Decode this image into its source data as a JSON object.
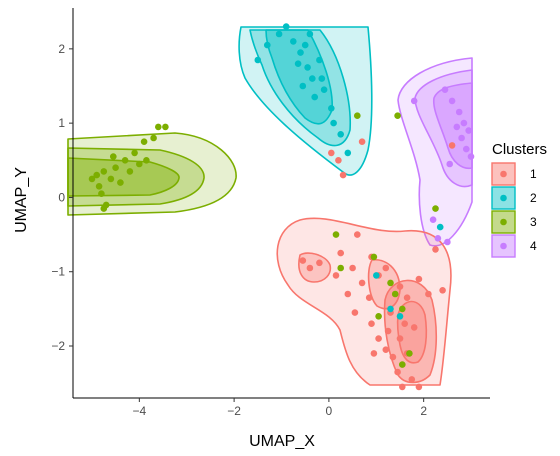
{
  "chart_data": {
    "type": "scatter",
    "title": "",
    "xlabel": "UMAP_X",
    "ylabel": "UMAP_Y",
    "xlim": [
      -5.4,
      3.4
    ],
    "ylim": [
      -2.7,
      2.55
    ],
    "xticks": [
      -4,
      -2,
      0,
      2
    ],
    "yticks": [
      -2,
      -1,
      0,
      1,
      2
    ],
    "tick_labels_x": [
      "−4",
      "−2",
      "0",
      "2"
    ],
    "tick_labels_y": [
      "−2",
      "−1",
      "0",
      "1",
      "2"
    ],
    "grid": false,
    "legend": {
      "title": "Clusters",
      "placement": "right"
    },
    "overlay": "2D density contours per cluster (3 levels, translucent fill)",
    "series": [
      {
        "name": "1",
        "color": "#F8766D",
        "points": [
          [
            -0.55,
            -0.85
          ],
          [
            -0.4,
            -0.95
          ],
          [
            -0.2,
            -0.88
          ],
          [
            0.25,
            -0.75
          ],
          [
            0.5,
            -0.95
          ],
          [
            0.7,
            -1.15
          ],
          [
            0.4,
            -1.3
          ],
          [
            0.15,
            -1.05
          ],
          [
            0.85,
            -1.35
          ],
          [
            0.55,
            -1.55
          ],
          [
            0.9,
            -1.7
          ],
          [
            1.05,
            -1.9
          ],
          [
            1.2,
            -2.05
          ],
          [
            1.5,
            -1.9
          ],
          [
            1.65,
            -2.1
          ],
          [
            1.45,
            -2.35
          ],
          [
            1.75,
            -2.45
          ],
          [
            1.35,
            -2.15
          ],
          [
            1.9,
            -2.55
          ],
          [
            1.55,
            -2.55
          ],
          [
            1.8,
            -1.75
          ],
          [
            1.3,
            -1.55
          ],
          [
            1.05,
            -1.05
          ],
          [
            1.2,
            -0.95
          ],
          [
            1.5,
            -1.2
          ],
          [
            1.9,
            -1.1
          ],
          [
            2.1,
            -1.3
          ],
          [
            2.4,
            -1.25
          ],
          [
            2.25,
            -0.7
          ],
          [
            0.6,
            -0.5
          ],
          [
            0.9,
            -0.8
          ],
          [
            2.6,
            0.7
          ],
          [
            0.05,
            0.6
          ],
          [
            0.2,
            0.5
          ],
          [
            0.3,
            0.3
          ],
          [
            0.7,
            0.75
          ],
          [
            1.65,
            -1.35
          ],
          [
            1.6,
            -1.7
          ],
          [
            1.25,
            -1.8
          ],
          [
            0.95,
            -2.1
          ]
        ]
      },
      {
        "name": "2",
        "color": "#00BFC4",
        "points": [
          [
            -1.3,
            2.05
          ],
          [
            -1.05,
            2.2
          ],
          [
            -0.9,
            2.3
          ],
          [
            -0.75,
            2.1
          ],
          [
            -0.6,
            1.95
          ],
          [
            -0.45,
            1.75
          ],
          [
            -0.5,
            2.05
          ],
          [
            -0.35,
            1.6
          ],
          [
            -0.2,
            1.85
          ],
          [
            -0.55,
            1.5
          ],
          [
            -0.3,
            1.35
          ],
          [
            -0.1,
            1.45
          ],
          [
            0.05,
            1.2
          ],
          [
            0.1,
            1.0
          ],
          [
            0.4,
            0.6
          ],
          [
            0.25,
            0.85
          ],
          [
            -0.15,
            1.6
          ],
          [
            -0.4,
            2.2
          ],
          [
            -1.5,
            1.85
          ],
          [
            -0.65,
            1.8
          ],
          [
            1.0,
            -1.05
          ],
          [
            1.3,
            -1.5
          ],
          [
            1.5,
            -1.6
          ],
          [
            2.35,
            -0.4
          ]
        ]
      },
      {
        "name": "3",
        "color": "#7CAE00",
        "points": [
          [
            -5.0,
            0.25
          ],
          [
            -4.9,
            0.3
          ],
          [
            -4.85,
            0.15
          ],
          [
            -4.75,
            0.35
          ],
          [
            -4.8,
            0.05
          ],
          [
            -4.7,
            -0.1
          ],
          [
            -4.6,
            0.25
          ],
          [
            -4.5,
            0.4
          ],
          [
            -4.4,
            0.2
          ],
          [
            -4.3,
            0.5
          ],
          [
            -4.2,
            0.35
          ],
          [
            -4.1,
            0.6
          ],
          [
            -4.0,
            0.45
          ],
          [
            -3.9,
            0.75
          ],
          [
            -3.85,
            0.5
          ],
          [
            -3.7,
            0.8
          ],
          [
            -3.6,
            0.95
          ],
          [
            -3.45,
            0.95
          ],
          [
            -4.75,
            -0.15
          ],
          [
            -4.55,
            0.55
          ],
          [
            0.15,
            -0.5
          ],
          [
            0.25,
            -0.95
          ],
          [
            0.95,
            -0.8
          ],
          [
            1.3,
            -1.15
          ],
          [
            1.4,
            -1.3
          ],
          [
            1.55,
            -1.5
          ],
          [
            1.55,
            -2.25
          ],
          [
            1.7,
            -2.1
          ],
          [
            2.25,
            -0.15
          ],
          [
            1.45,
            1.1
          ],
          [
            0.6,
            1.1
          ],
          [
            1.05,
            -1.6
          ]
        ]
      },
      {
        "name": "4",
        "color": "#C77CFF",
        "points": [
          [
            2.45,
            1.45
          ],
          [
            2.6,
            1.3
          ],
          [
            2.75,
            1.15
          ],
          [
            2.85,
            1.0
          ],
          [
            2.95,
            0.9
          ],
          [
            2.8,
            0.8
          ],
          [
            2.7,
            0.95
          ],
          [
            2.9,
            0.65
          ],
          [
            3.0,
            0.55
          ],
          [
            2.55,
            0.45
          ],
          [
            1.8,
            1.3
          ],
          [
            2.2,
            -0.3
          ],
          [
            2.3,
            -0.55
          ],
          [
            2.5,
            -0.6
          ]
        ]
      }
    ]
  }
}
